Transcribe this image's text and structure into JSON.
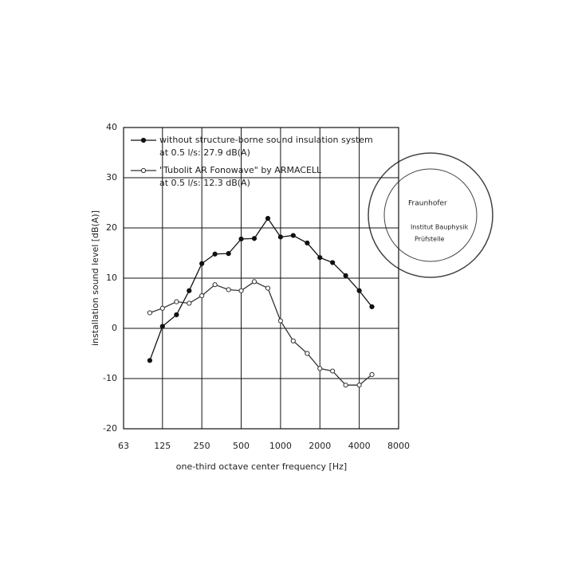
{
  "chart_data": {
    "type": "line",
    "ylabel": "installation sound level [dB(A)]",
    "xlabel": "one-third octave center frequency [Hz]",
    "x": [
      100,
      125,
      160,
      200,
      250,
      315,
      400,
      500,
      630,
      800,
      1000,
      1250,
      1600,
      2000,
      2500,
      3150,
      4000,
      5000
    ],
    "series": [
      {
        "name": "without structure-borne sound insulation system",
        "note": "at 0.5 l/s: 27.9 dB(A)",
        "color": "#111111",
        "marker": "filled",
        "values": [
          -6.4,
          0.4,
          2.7,
          7.5,
          12.9,
          14.8,
          14.9,
          17.8,
          17.9,
          21.9,
          18.2,
          18.5,
          17.0,
          14.1,
          13.1,
          10.5,
          7.5,
          4.3
        ]
      },
      {
        "name": "\"Tubolit AR Fonowave\" by ARMACELL",
        "note": "at 0.5 l/s: 12.3 dB(A)",
        "color": "#333333",
        "marker": "open",
        "values": [
          3.1,
          4.0,
          5.3,
          5.0,
          6.5,
          8.7,
          7.7,
          7.5,
          9.3,
          8.0,
          1.5,
          -2.5,
          -5.0,
          -8.0,
          -8.5,
          -11.3,
          -11.3,
          -9.2
        ]
      }
    ],
    "xlim": [
      63,
      8000
    ],
    "xticks": [
      63,
      125,
      250,
      500,
      1000,
      2000,
      4000,
      8000
    ],
    "xscale": "log",
    "ylim": [
      -20,
      40
    ],
    "yticks": [
      -20,
      -10,
      0,
      10,
      20,
      30,
      40
    ],
    "grid": true,
    "stamp": [
      "Fraunhofer",
      "Institut Bauphysik",
      "Prüfstelle"
    ]
  }
}
